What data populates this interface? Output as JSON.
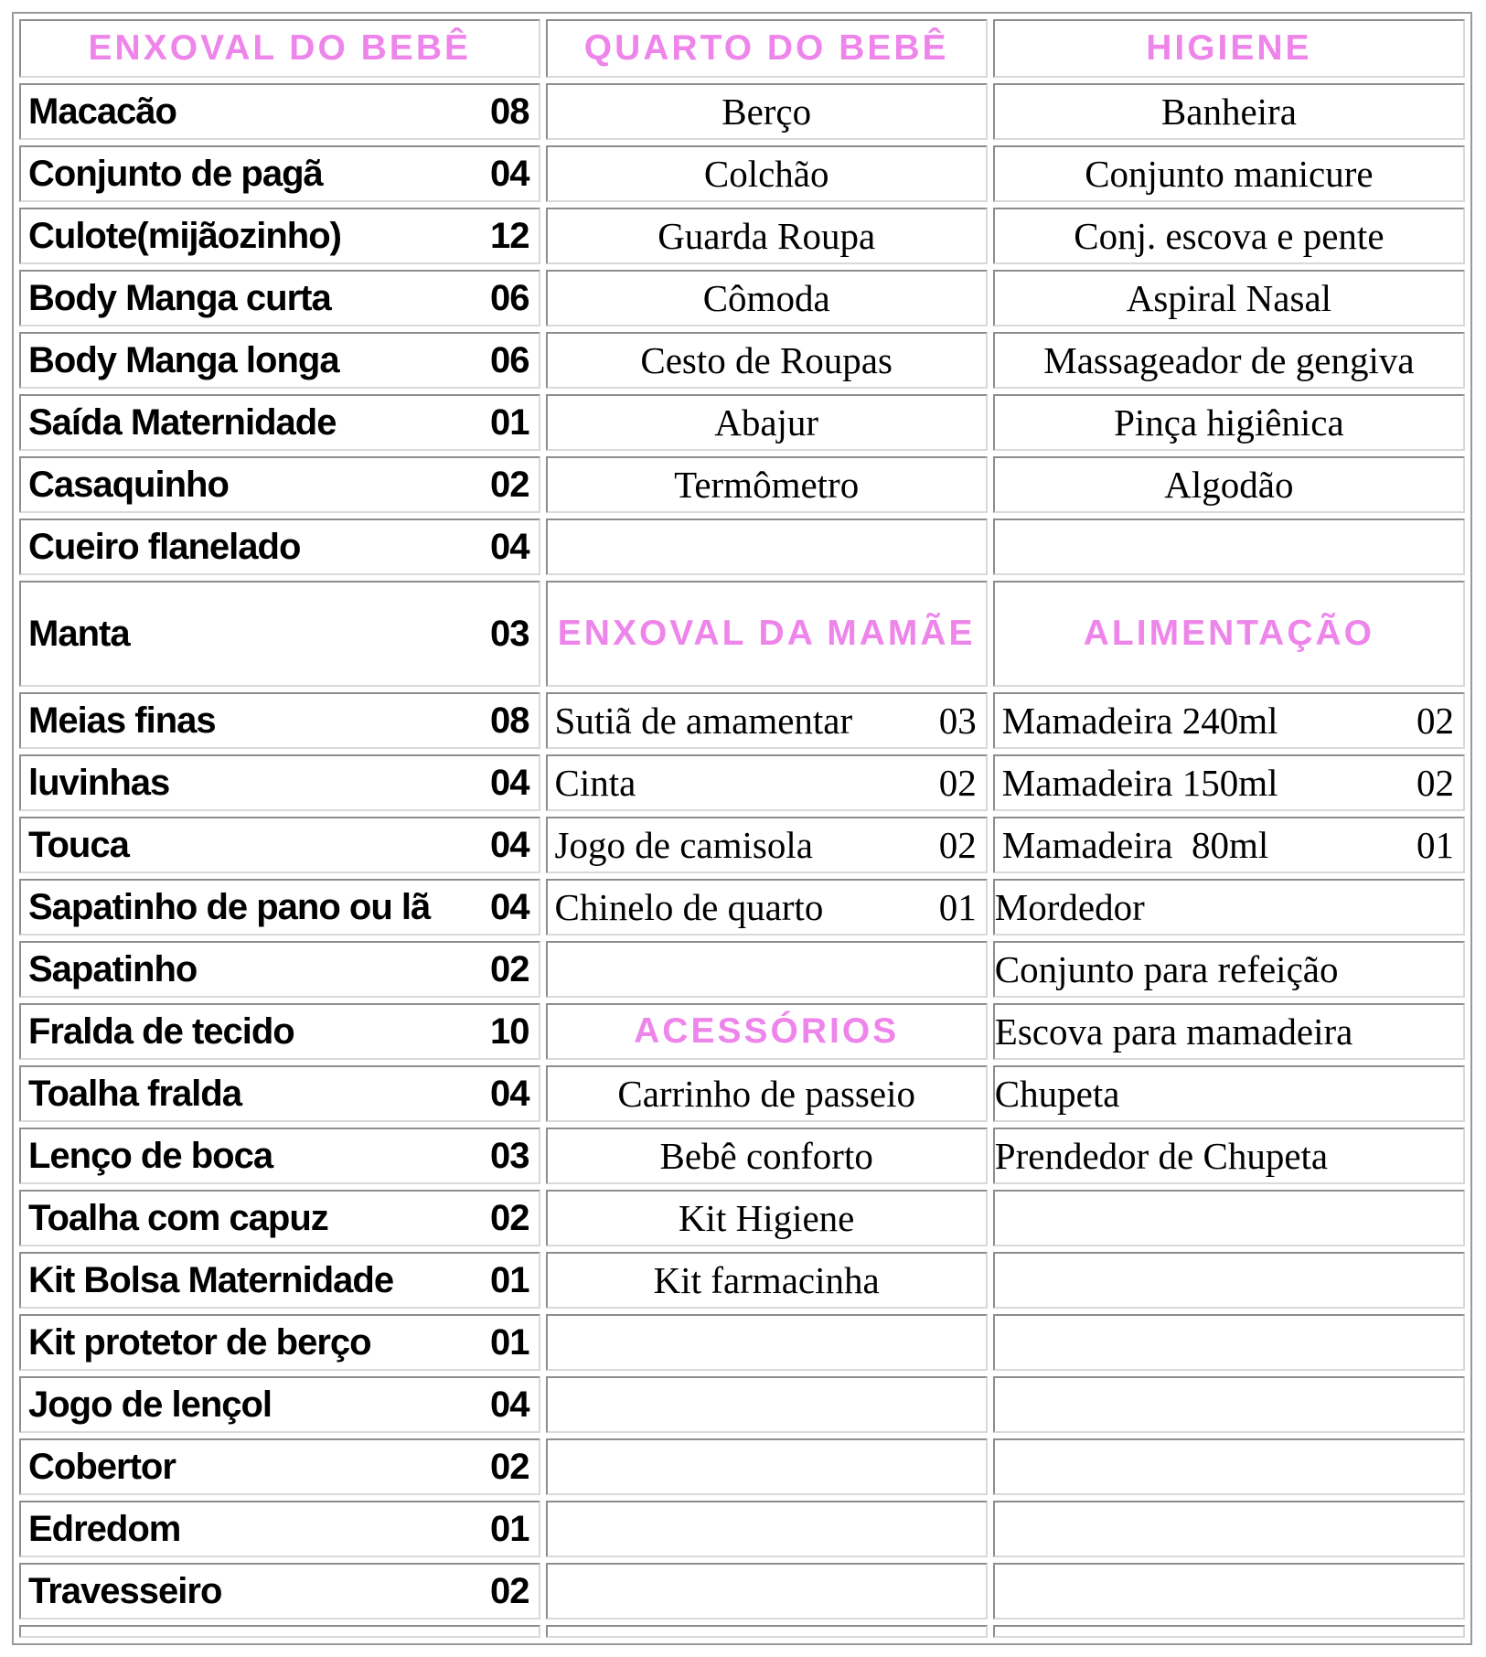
{
  "colors": {
    "header_pink": "#EE85EA",
    "cell_border_dark": "#8D8D8D",
    "cell_border_light": "#D9D9D9",
    "table_border": "#9A9A9A",
    "text": "#000000"
  },
  "table": {
    "rows": [
      {
        "kind": "header",
        "cells": [
          {
            "t": "h",
            "name": "section-header-enxoval-do-bebe",
            "text": "ENXOVAL DO BEBÊ"
          },
          {
            "t": "h",
            "name": "section-header-quarto-do-bebe",
            "text": "QUARTO DO BEBÊ"
          },
          {
            "t": "h",
            "name": "section-header-higiene",
            "text": "HIGIENE"
          }
        ]
      },
      {
        "cells": [
          {
            "t": "q",
            "label": "Macacão",
            "qty": "08"
          },
          {
            "t": "c",
            "text": "Berço"
          },
          {
            "t": "c",
            "text": "Banheira"
          }
        ]
      },
      {
        "cells": [
          {
            "t": "q",
            "label": "Conjunto de pagã",
            "qty": "04"
          },
          {
            "t": "c",
            "text": "Colchão"
          },
          {
            "t": "c",
            "text": "Conjunto manicure"
          }
        ]
      },
      {
        "cells": [
          {
            "t": "q",
            "label": "Culote(mijãozinho)",
            "qty": "12"
          },
          {
            "t": "c",
            "text": "Guarda Roupa"
          },
          {
            "t": "c",
            "text": "Conj. escova e pente"
          }
        ]
      },
      {
        "cells": [
          {
            "t": "q",
            "label": "Body Manga curta",
            "qty": "06"
          },
          {
            "t": "c",
            "text": "Cômoda"
          },
          {
            "t": "c",
            "text": "Aspiral Nasal"
          }
        ]
      },
      {
        "cells": [
          {
            "t": "q",
            "label": "Body Manga longa",
            "qty": "06"
          },
          {
            "t": "c",
            "text": "Cesto de Roupas"
          },
          {
            "t": "c",
            "text": "Massageador de gengiva"
          }
        ]
      },
      {
        "cells": [
          {
            "t": "q",
            "label": "Saída Maternidade",
            "qty": "01"
          },
          {
            "t": "c",
            "text": "Abajur"
          },
          {
            "t": "c",
            "text": "Pinça higiênica"
          }
        ]
      },
      {
        "cells": [
          {
            "t": "q",
            "label": "Casaquinho",
            "qty": "02"
          },
          {
            "t": "c",
            "text": "Termômetro"
          },
          {
            "t": "c",
            "text": "Algodão"
          }
        ]
      },
      {
        "cells": [
          {
            "t": "q",
            "label": "Cueiro flanelado",
            "qty": "04"
          },
          {
            "t": "e"
          },
          {
            "t": "e"
          }
        ]
      },
      {
        "kind": "tall",
        "cells": [
          {
            "t": "q",
            "label": "Manta",
            "qty": "03"
          },
          {
            "t": "h",
            "name": "section-header-enxoval-da-mamae",
            "text": "ENXOVAL DA\nMAMÃE"
          },
          {
            "t": "h",
            "name": "section-header-alimentacao",
            "text": "ALIMENTAÇÃO"
          }
        ]
      },
      {
        "cells": [
          {
            "t": "q",
            "label": "Meias finas",
            "qty": "08"
          },
          {
            "t": "q",
            "label": "Sutiã de amamentar",
            "qty": "03"
          },
          {
            "t": "q",
            "label": "Mamadeira 240ml",
            "qty": "02"
          }
        ]
      },
      {
        "cells": [
          {
            "t": "q",
            "label": "luvinhas",
            "qty": "04"
          },
          {
            "t": "q",
            "label": "Cinta",
            "qty": "02"
          },
          {
            "t": "q",
            "label": "Mamadeira 150ml",
            "qty": "02"
          }
        ]
      },
      {
        "cells": [
          {
            "t": "q",
            "label": "Touca",
            "qty": "04"
          },
          {
            "t": "q",
            "label": "Jogo de camisola",
            "qty": "02"
          },
          {
            "t": "q",
            "label": "Mamadeira  80ml",
            "qty": "01"
          }
        ]
      },
      {
        "cells": [
          {
            "t": "q",
            "label": "Sapatinho de pano ou lã",
            "qty": "04"
          },
          {
            "t": "q",
            "label": "Chinelo de quarto",
            "qty": "01"
          },
          {
            "t": "l",
            "text": "Mordedor"
          }
        ]
      },
      {
        "cells": [
          {
            "t": "q",
            "label": "Sapatinho",
            "qty": "02"
          },
          {
            "t": "e"
          },
          {
            "t": "l",
            "text": "Conjunto para refeição"
          }
        ]
      },
      {
        "cells": [
          {
            "t": "q",
            "label": "Fralda de tecido",
            "qty": "10"
          },
          {
            "t": "h",
            "name": "section-header-acessorios",
            "text": "ACESSÓRIOS"
          },
          {
            "t": "l",
            "text": "Escova para mamadeira"
          }
        ]
      },
      {
        "cells": [
          {
            "t": "q",
            "label": "Toalha fralda",
            "qty": "04"
          },
          {
            "t": "c",
            "text": "Carrinho de passeio"
          },
          {
            "t": "l",
            "text": "Chupeta"
          }
        ]
      },
      {
        "cells": [
          {
            "t": "q",
            "label": "Lenço de boca",
            "qty": "03"
          },
          {
            "t": "c",
            "text": "Bebê conforto"
          },
          {
            "t": "l",
            "text": "Prendedor de Chupeta"
          }
        ]
      },
      {
        "cells": [
          {
            "t": "q",
            "label": "Toalha com capuz",
            "qty": "02"
          },
          {
            "t": "c",
            "text": "Kit Higiene"
          },
          {
            "t": "e"
          }
        ]
      },
      {
        "cells": [
          {
            "t": "q",
            "label": "Kit Bolsa Maternidade",
            "qty": "01"
          },
          {
            "t": "c",
            "text": "Kit farmacinha"
          },
          {
            "t": "e"
          }
        ]
      },
      {
        "cells": [
          {
            "t": "q",
            "label": "Kit protetor de berço",
            "qty": "01"
          },
          {
            "t": "e"
          },
          {
            "t": "e"
          }
        ]
      },
      {
        "cells": [
          {
            "t": "q",
            "label": "Jogo de lençol",
            "qty": "04"
          },
          {
            "t": "e"
          },
          {
            "t": "e"
          }
        ]
      },
      {
        "cells": [
          {
            "t": "q",
            "label": "Cobertor",
            "qty": "02"
          },
          {
            "t": "e"
          },
          {
            "t": "e"
          }
        ]
      },
      {
        "cells": [
          {
            "t": "q",
            "label": "Edredom",
            "qty": "01"
          },
          {
            "t": "e"
          },
          {
            "t": "e"
          }
        ]
      },
      {
        "cells": [
          {
            "t": "q",
            "label": "Travesseiro",
            "qty": "02"
          },
          {
            "t": "e"
          },
          {
            "t": "e"
          }
        ]
      },
      {
        "kind": "thin",
        "cells": [
          {
            "t": "e"
          },
          {
            "t": "e"
          },
          {
            "t": "e"
          }
        ]
      }
    ]
  }
}
